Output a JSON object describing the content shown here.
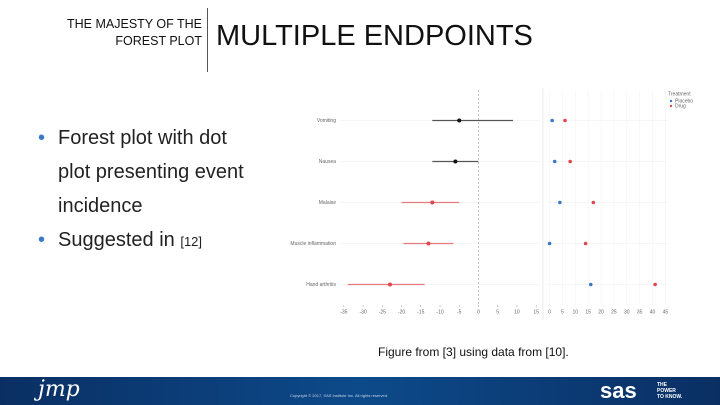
{
  "header": {
    "kicker_line1": "THE MAJESTY OF THE",
    "kicker_line2": "FOREST PLOT",
    "title": "MULTIPLE ENDPOINTS"
  },
  "bullets": [
    {
      "lines": [
        "Forest plot with dot",
        "plot presenting event",
        "incidence"
      ]
    },
    {
      "lines": [
        "Suggested in"
      ],
      "ref": "[12]"
    }
  ],
  "caption": "Figure from [3] using data from [10].",
  "footer": {
    "left_logo": "jmp",
    "copyright": "Copyright © 2017, SAS Institute Inc. All rights reserved.",
    "right_logo": "sas",
    "tagline": [
      "THE",
      "POWER",
      "TO KNOW."
    ]
  },
  "chart_data": [
    {
      "type": "forest",
      "categories": [
        "Vomiting",
        "Nausea",
        "Malaise",
        "Muscle inflammation",
        "Hand arthritis"
      ],
      "values": [
        -5,
        -6,
        -12,
        -13,
        -23
      ],
      "lower": [
        -12,
        -12,
        -20,
        -19.5,
        -34
      ],
      "upper": [
        9,
        0,
        -5,
        -6.5,
        -14
      ],
      "colors": [
        "#111111",
        "#111111",
        "#e0474c",
        "#e0474c",
        "#e0474c"
      ],
      "xlim": [
        -36,
        16
      ],
      "xticks": [
        -35,
        -30,
        -25,
        -20,
        -15,
        -10,
        -5,
        0,
        5,
        10,
        15
      ],
      "reference_line": 0
    },
    {
      "type": "dot",
      "legend_title": "Treatment",
      "series": [
        {
          "name": "Placebo",
          "color": "#3a78c9",
          "values": [
            1,
            2,
            4,
            0,
            16
          ]
        },
        {
          "name": "Drug",
          "color": "#e0474c",
          "values": [
            6,
            8,
            17,
            14,
            41
          ]
        }
      ],
      "xlim": [
        -1,
        46
      ],
      "xticks": [
        0,
        5,
        10,
        15,
        20,
        25,
        30,
        35,
        40,
        45
      ]
    }
  ]
}
